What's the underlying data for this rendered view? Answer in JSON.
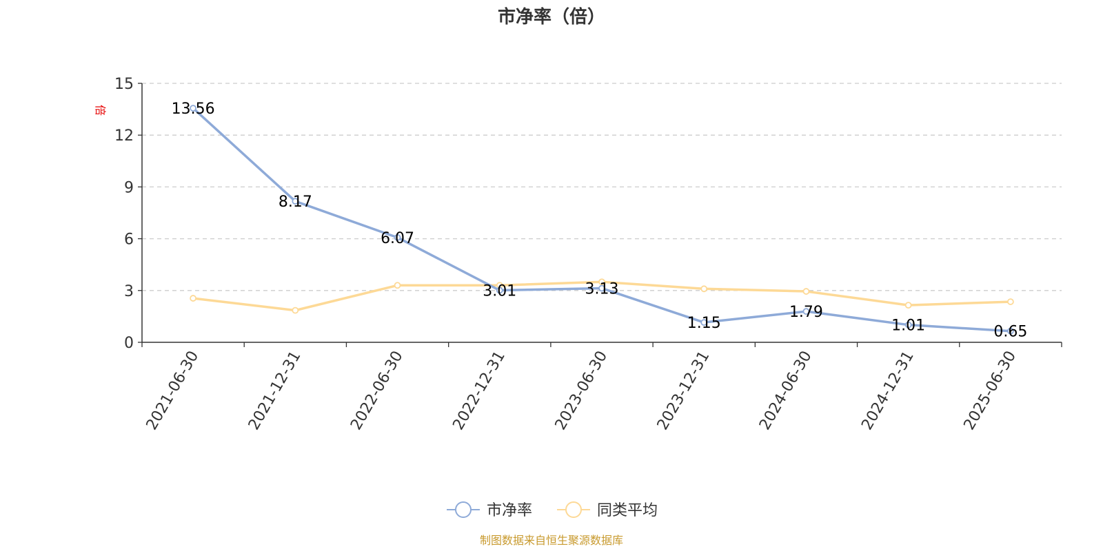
{
  "chart_data": {
    "type": "line",
    "title": "市净率（倍）",
    "ylabel": "倍",
    "ylim": [
      0,
      15
    ],
    "yticks": [
      0,
      3,
      6,
      9,
      12,
      15
    ],
    "categories": [
      "2021-06-30",
      "2021-12-31",
      "2022-06-30",
      "2022-12-31",
      "2023-06-30",
      "2023-12-31",
      "2024-06-30",
      "2024-12-31",
      "2025-06-30"
    ],
    "series": [
      {
        "name": "市净率",
        "color": "#8eaad8",
        "values": [
          13.56,
          8.17,
          6.07,
          3.01,
          3.13,
          1.15,
          1.79,
          1.01,
          0.65
        ],
        "labels": [
          "13.56",
          "8.17",
          "6.07",
          "3.01",
          "3.13",
          "1.15",
          "1.79",
          "1.01",
          "0.65"
        ]
      },
      {
        "name": "同类平均",
        "color": "#fdd996",
        "values": [
          2.55,
          1.85,
          3.3,
          3.3,
          3.5,
          3.1,
          2.95,
          2.15,
          2.35
        ]
      }
    ],
    "grid": true,
    "legend": "bottom-center",
    "source_note": "制图数据来自恒生聚源数据库"
  }
}
